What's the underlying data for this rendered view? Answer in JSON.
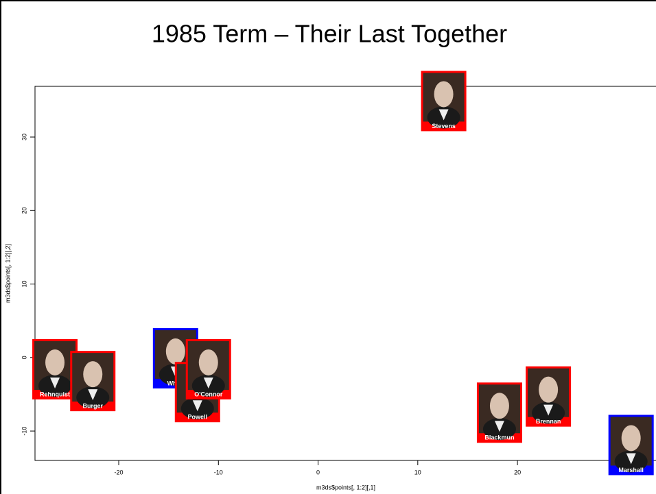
{
  "chart_data": {
    "type": "scatter",
    "title": "1985 Term – Their Last Together",
    "xlabel": "m3ds$points[, 1:2][,1]",
    "ylabel": "m3ds$points[, 1:2][,2]",
    "labels": [
      "Stevens",
      "Rehnquist",
      "Burger",
      "White",
      "Powell",
      "O'Connor",
      "Blackmun",
      "Brennan",
      "Marshall"
    ],
    "x": [
      12.6,
      -26.4,
      -22.6,
      -14.3,
      -12.1,
      -11.0,
      18.2,
      23.1,
      31.4
    ],
    "values": [
      34.9,
      -1.6,
      -3.2,
      -0.1,
      -4.7,
      -1.6,
      -7.5,
      -5.3,
      -11.9
    ],
    "colors": [
      "#ff0000",
      "#ff0000",
      "#ff0000",
      "#0000ff",
      "#ff0000",
      "#ff0000",
      "#ff0000",
      "#ff0000",
      "#0000ff"
    ],
    "xlim": [
      -28.4,
      33.9
    ],
    "ylim": [
      -14,
      36.9
    ],
    "xticks": [
      -20,
      -10,
      0,
      10,
      20
    ],
    "yticks": [
      -10,
      0,
      10,
      20,
      30
    ]
  }
}
